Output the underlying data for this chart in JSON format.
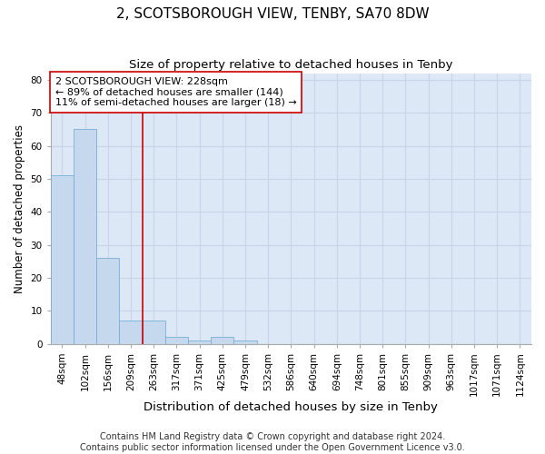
{
  "title": "2, SCOTSBOROUGH VIEW, TENBY, SA70 8DW",
  "subtitle": "Size of property relative to detached houses in Tenby",
  "xlabel": "Distribution of detached houses by size in Tenby",
  "ylabel": "Number of detached properties",
  "bin_labels": [
    "48sqm",
    "102sqm",
    "156sqm",
    "209sqm",
    "263sqm",
    "317sqm",
    "371sqm",
    "425sqm",
    "479sqm",
    "532sqm",
    "586sqm",
    "640sqm",
    "694sqm",
    "748sqm",
    "801sqm",
    "855sqm",
    "909sqm",
    "963sqm",
    "1017sqm",
    "1071sqm",
    "1124sqm"
  ],
  "bar_values": [
    51,
    65,
    26,
    7,
    7,
    2,
    1,
    2,
    1,
    0,
    0,
    0,
    0,
    0,
    0,
    0,
    0,
    0,
    0,
    0,
    0
  ],
  "bar_color": "#c5d8ee",
  "bar_edge_color": "#7aafd4",
  "property_line_x": 3.5,
  "property_line_color": "#cc0000",
  "annotation_line1": "2 SCOTSBOROUGH VIEW: 228sqm",
  "annotation_line2": "← 89% of detached houses are smaller (144)",
  "annotation_line3": "11% of semi-detached houses are larger (18) →",
  "annotation_box_color": "#ffffff",
  "annotation_box_edge": "#cc0000",
  "ylim": [
    0,
    82
  ],
  "yticks": [
    0,
    10,
    20,
    30,
    40,
    50,
    60,
    70,
    80
  ],
  "footnote": "Contains HM Land Registry data © Crown copyright and database right 2024.\nContains public sector information licensed under the Open Government Licence v3.0.",
  "grid_color": "#c8d4e8",
  "background_color": "#dce8f5",
  "title_fontsize": 11,
  "subtitle_fontsize": 9.5,
  "xlabel_fontsize": 9.5,
  "ylabel_fontsize": 8.5,
  "tick_fontsize": 7.5,
  "annotation_fontsize": 8,
  "footnote_fontsize": 7
}
